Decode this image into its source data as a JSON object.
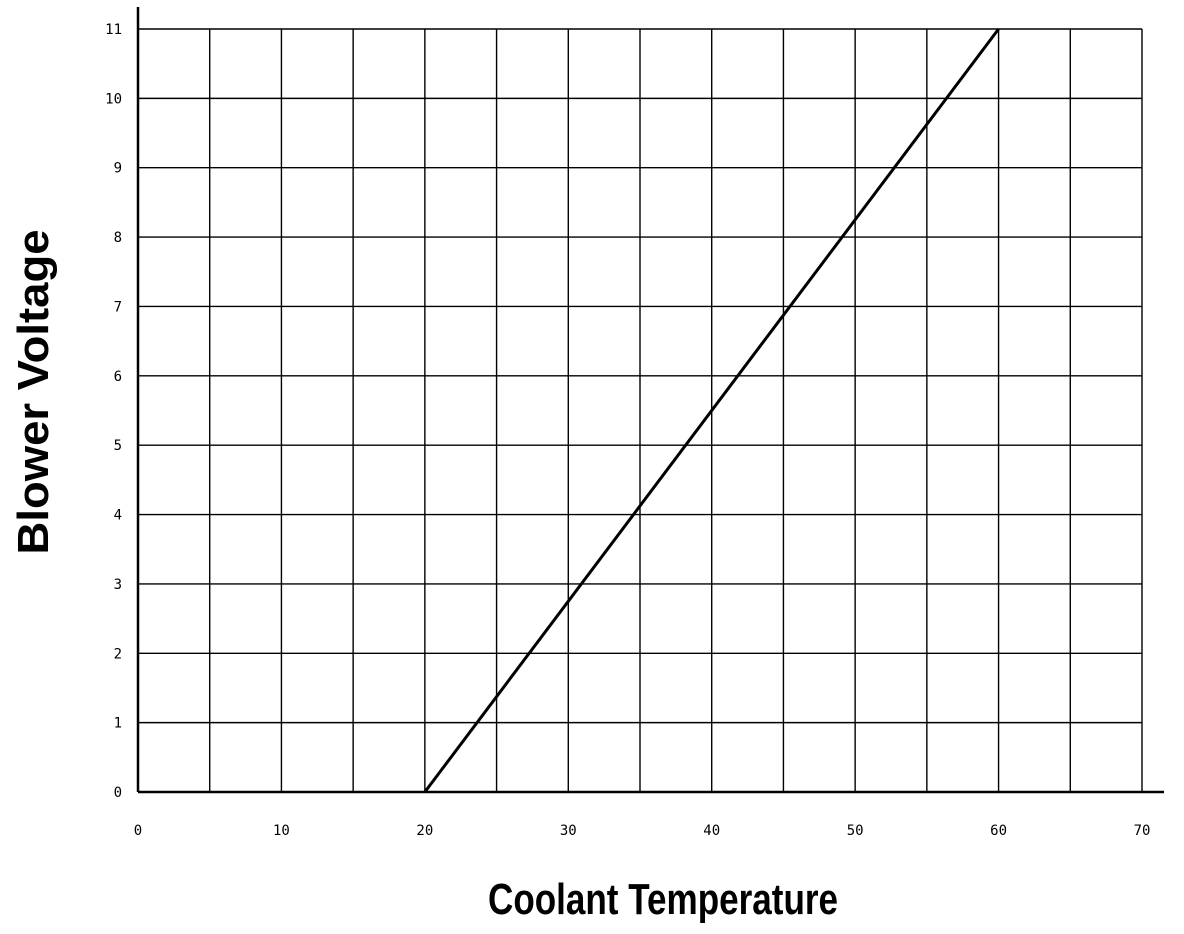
{
  "chart_data": {
    "type": "line",
    "title": "",
    "xlabel": "Coolant Temperature",
    "ylabel": "Blower Voltage",
    "xlim": [
      0,
      70
    ],
    "ylim": [
      0,
      11
    ],
    "x_ticks": [
      "0",
      "10",
      "20",
      "30",
      "40",
      "50",
      "60",
      "70"
    ],
    "y_ticks": [
      "0",
      "1",
      "2",
      "3",
      "4",
      "5",
      "6",
      "7",
      "8",
      "9",
      "10",
      "11"
    ],
    "grid": true,
    "legend": "none",
    "series": [
      {
        "x": [
          20,
          60
        ],
        "y": [
          0,
          11
        ],
        "color": "#000000"
      }
    ]
  }
}
